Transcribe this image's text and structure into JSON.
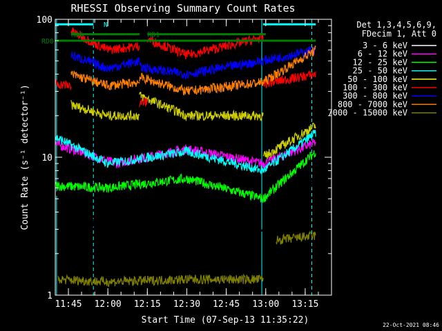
{
  "chart_data": {
    "type": "line",
    "title": "RHESSI Observing Summary Count Rates",
    "xlabel": "Start Time (07-Sep-13 11:35:22)",
    "ylabel": "Count Rate (s⁻¹ detector⁻¹)",
    "yscale": "log",
    "ylim": [
      1,
      100
    ],
    "xlim_minutes": [
      5,
      110
    ],
    "y_ticks": [
      {
        "value": 1,
        "label": "1"
      },
      {
        "value": 10,
        "label": "10"
      },
      {
        "value": 100,
        "label": "100"
      }
    ],
    "x_ticks": [
      {
        "minute": 10,
        "label": "11:45"
      },
      {
        "minute": 25,
        "label": "12:00"
      },
      {
        "minute": 40,
        "label": "12:15"
      },
      {
        "minute": 55,
        "label": "12:30"
      },
      {
        "minute": 70,
        "label": "12:45"
      },
      {
        "minute": 85,
        "label": "13:00"
      },
      {
        "minute": 100,
        "label": "13:15"
      }
    ],
    "legend_header": [
      "Det 1,3,4,5,6,9,",
      "FDecim 1, Att 0"
    ],
    "series": [
      {
        "name": "3 - 6 keV",
        "color": "#ffffff"
      },
      {
        "name": "6 - 12 keV",
        "color": "#ff00ff"
      },
      {
        "name": "12 - 25 keV",
        "color": "#00ff00"
      },
      {
        "name": "25 - 50 keV",
        "color": "#00ffff"
      },
      {
        "name": "50 - 100 keV",
        "color": "#ffff00"
      },
      {
        "name": "100 - 300 keV",
        "color": "#ff0000"
      },
      {
        "name": "300 - 800 keV",
        "color": "#0000ff"
      },
      {
        "name": "800 - 7000 keV",
        "color": "#ff8000"
      },
      {
        "name": "7000 - 15000 keV",
        "color": "#808000"
      }
    ],
    "plotted_levels": [
      {
        "series": "3 - 6 keV",
        "draw_color": "#000000",
        "segments": [
          {
            "x": [
              5,
              25,
              55,
              84,
              104
            ],
            "y": [
              5.6,
              2.7,
              5.0,
              2.8,
              6.8
            ]
          }
        ]
      },
      {
        "series": "6 - 12 keV",
        "draw_color": "#ff00ff",
        "segments": [
          {
            "x": [
              5,
              28,
              55,
              84,
              104
            ],
            "y": [
              12.5,
              9.0,
              11.5,
              9.0,
              12.8
            ]
          }
        ]
      },
      {
        "series": "12 - 25 keV",
        "draw_color": "#00ff00",
        "segments": [
          {
            "x": [
              5,
              25,
              55,
              84,
              104
            ],
            "y": [
              6.2,
              6.0,
              7.0,
              5.0,
              11.0
            ]
          }
        ]
      },
      {
        "series": "25 - 50 keV",
        "draw_color": "#00ffff",
        "segments": [
          {
            "x": [
              5,
              25,
              55,
              84,
              104
            ],
            "y": [
              14.0,
              9.0,
              11.0,
              8.0,
              15.0
            ]
          }
        ]
      },
      {
        "series": "50 - 100 keV",
        "draw_color": "#cccc00",
        "segments": [
          {
            "x": [
              11,
              25,
              37
            ],
            "y": [
              24,
              20,
              20
            ]
          },
          {
            "x": [
              37,
              55,
              84
            ],
            "y": [
              28,
              20,
              20
            ]
          },
          {
            "x": [
              84,
              104
            ],
            "y": [
              10.0,
              17.0
            ]
          }
        ]
      },
      {
        "series": "100 - 300 keV",
        "draw_color": "#ff0000",
        "segments": [
          {
            "x": [
              5,
              11
            ],
            "y": [
              34,
              33
            ]
          },
          {
            "x": [
              11,
              25,
              37
            ],
            "y": [
              82,
              60,
              64
            ]
          },
          {
            "x": [
              37,
              40
            ],
            "y": [
              25,
              25
            ]
          },
          {
            "x": [
              40,
              55,
              84
            ],
            "y": [
              72,
              55,
              74
            ]
          },
          {
            "x": [
              84,
              104
            ],
            "y": [
              34,
              40
            ]
          }
        ]
      },
      {
        "series": "300 - 800 keV",
        "draw_color": "#0000ff",
        "segments": [
          {
            "x": [
              11,
              25,
              37
            ],
            "y": [
              55,
              44,
              50
            ]
          },
          {
            "x": [
              37,
              55,
              84
            ],
            "y": [
              45,
              40,
              50
            ]
          },
          {
            "x": [
              84,
              104
            ],
            "y": [
              50,
              60
            ]
          }
        ]
      },
      {
        "series": "800 - 7000 keV",
        "draw_color": "#ff8000",
        "segments": [
          {
            "x": [
              11,
              25,
              37
            ],
            "y": [
              40,
              33,
              35
            ]
          },
          {
            "x": [
              37,
              55,
              84
            ],
            "y": [
              38,
              30,
              35
            ]
          },
          {
            "x": [
              84,
              104
            ],
            "y": [
              35,
              60
            ]
          }
        ]
      },
      {
        "series": "7000 - 15000 keV",
        "draw_color": "#808000",
        "segments": [
          {
            "x": [
              6,
              25,
              55,
              84
            ],
            "y": [
              1.3,
              1.25,
              1.3,
              1.3
            ]
          },
          {
            "x": [
              89,
              104
            ],
            "y": [
              2.5,
              2.7
            ]
          }
        ]
      }
    ],
    "vertical_markers": [
      {
        "minute": 5.5,
        "color": "#00ffff",
        "style": "solid"
      },
      {
        "minute": 19.5,
        "color": "#00ffff",
        "style": "dashed"
      },
      {
        "minute": 83.5,
        "color": "#00ffff",
        "style": "solid"
      },
      {
        "minute": 102.5,
        "color": "#00ffff",
        "style": "dashed"
      }
    ],
    "state_bars": [
      {
        "label": "RD0",
        "color": "#008000",
        "x": [
          5,
          104
        ],
        "y": 70
      },
      {
        "label": "RD6",
        "color": "#008000",
        "x": [
          11,
          37
        ],
        "y": 78
      },
      {
        "label": "RD1",
        "color": "#008000",
        "x": [
          40,
          85
        ],
        "y": 78
      },
      {
        "label": "N",
        "color": "#00ffff",
        "x": [
          5,
          19.5
        ],
        "y": 92
      },
      {
        "label": "",
        "color": "#00ffff",
        "x": [
          84,
          104
        ],
        "y": 92
      }
    ],
    "footer_date": "22-Oct-2021 08:46"
  }
}
